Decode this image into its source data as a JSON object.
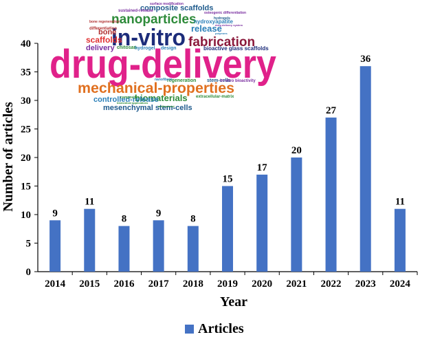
{
  "chart_data": {
    "type": "bar",
    "categories": [
      "2014",
      "2015",
      "2016",
      "2017",
      "2018",
      "2019",
      "2020",
      "2021",
      "2022",
      "2023",
      "2024"
    ],
    "series": [
      {
        "name": "Articles",
        "values": [
          9,
          11,
          8,
          9,
          8,
          15,
          17,
          20,
          27,
          36,
          11
        ]
      }
    ],
    "xlabel": "Year",
    "ylabel": "Number of articles",
    "ylim": [
      0,
      40
    ],
    "yticks": [
      0,
      5,
      10,
      15,
      20,
      25,
      30,
      35,
      40
    ],
    "grid": false,
    "legend_position": "bottom",
    "bar_color": "#4472C4",
    "data_labels": true
  },
  "word_cloud": [
    {
      "text": "drug-delivery",
      "color": "#e0218a"
    },
    {
      "text": "in-vitro",
      "color": "#1c2c7a"
    },
    {
      "text": "nanoparticles",
      "color": "#2e8b3a"
    },
    {
      "text": "fabrication",
      "color": "#8b1a3c"
    },
    {
      "text": "mechanical-properties",
      "color": "#e07020"
    },
    {
      "text": "composite scaffolds",
      "color": "#1e5a8c"
    },
    {
      "text": "release",
      "color": "#2a7fb8"
    },
    {
      "text": "scaffolds",
      "color": "#e03030"
    },
    {
      "text": "delivery",
      "color": "#7a30a0"
    },
    {
      "text": "bone",
      "color": "#b03030"
    },
    {
      "text": "biomaterials",
      "color": "#2e8b3a"
    },
    {
      "text": "controlled-release",
      "color": "#2a7fb8"
    },
    {
      "text": "mesenchymal stem-cells",
      "color": "#1e5a8c"
    },
    {
      "text": "bioactive glass scaffolds",
      "color": "#1c2c7a"
    },
    {
      "text": "hydroxyapatite",
      "color": "#2a7fb8"
    },
    {
      "text": "regeneration",
      "color": "#2e8b3a"
    },
    {
      "text": "stem-cells",
      "color": "#1e5a8c"
    },
    {
      "text": "in-vitro bioactivity",
      "color": "#7a30a0"
    },
    {
      "text": "extracellular-matrix",
      "color": "#2e8b3a"
    },
    {
      "text": "chitosan",
      "color": "#2e8b3a"
    },
    {
      "text": "hydrogel",
      "color": "#2a7fb8"
    },
    {
      "text": "design",
      "color": "#2a7fb8"
    },
    {
      "text": "sustained-release",
      "color": "#7a30a0"
    },
    {
      "text": "bone regeneration",
      "color": "#b03030"
    },
    {
      "text": "differentiation",
      "color": "#b03030"
    },
    {
      "text": "nanofibers",
      "color": "#2a7fb8"
    },
    {
      "text": "surface modification",
      "color": "#7a30a0"
    },
    {
      "text": "osteogenic differentiation",
      "color": "#7a30a0"
    },
    {
      "text": "hydrogels",
      "color": "#1e5a8c"
    },
    {
      "text": "polymers",
      "color": "#2a7fb8"
    },
    {
      "text": "drug delivery system",
      "color": "#7a30a0"
    },
    {
      "text": "composite",
      "color": "#2e8b3a"
    },
    {
      "text": "biomedical applications",
      "color": "#2e8b3a"
    },
    {
      "text": "antibacterial",
      "color": "#2e8b3a"
    }
  ]
}
